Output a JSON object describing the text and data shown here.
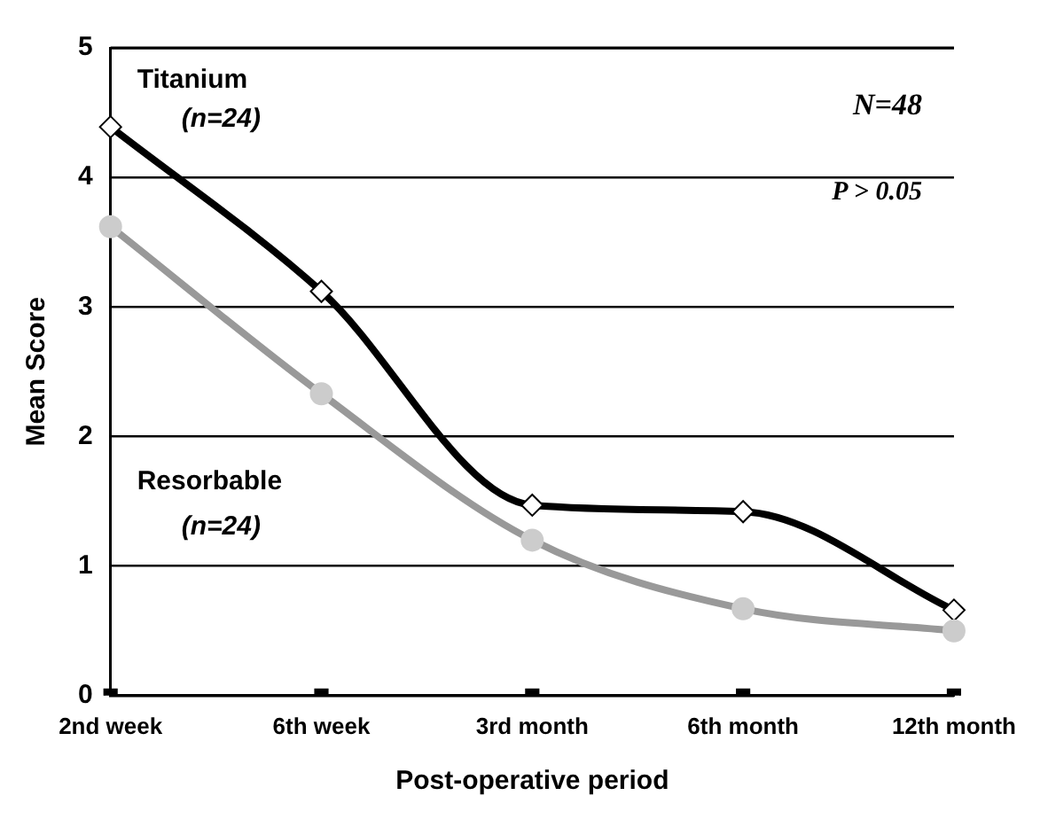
{
  "chart_data": {
    "type": "line",
    "xlabel": "Post-operative period",
    "ylabel": "Mean Score",
    "categories": [
      "2nd week",
      "6th week",
      "3rd month",
      "6th month",
      "12th month"
    ],
    "series": [
      {
        "name": "Titanium",
        "color": "#000000",
        "marker": "diamond",
        "values": [
          4.39,
          3.12,
          1.47,
          1.42,
          0.66
        ]
      },
      {
        "name": "Resorbable",
        "color": "#999999",
        "marker": "circle",
        "values": [
          3.62,
          2.33,
          1.2,
          0.67,
          0.5
        ]
      },
      {
        "type": "scatter",
        "color": "#000000",
        "marker": "square",
        "values": [
          0,
          0,
          0,
          0,
          0
        ]
      }
    ],
    "annotations": [
      "(n=24)",
      "(n=24)",
      "N=48",
      "P > 0.05"
    ],
    "ylim": [
      0,
      5
    ],
    "yticks": [
      0,
      1,
      2,
      3,
      4,
      5
    ],
    "grid": "y",
    "legend": false
  }
}
